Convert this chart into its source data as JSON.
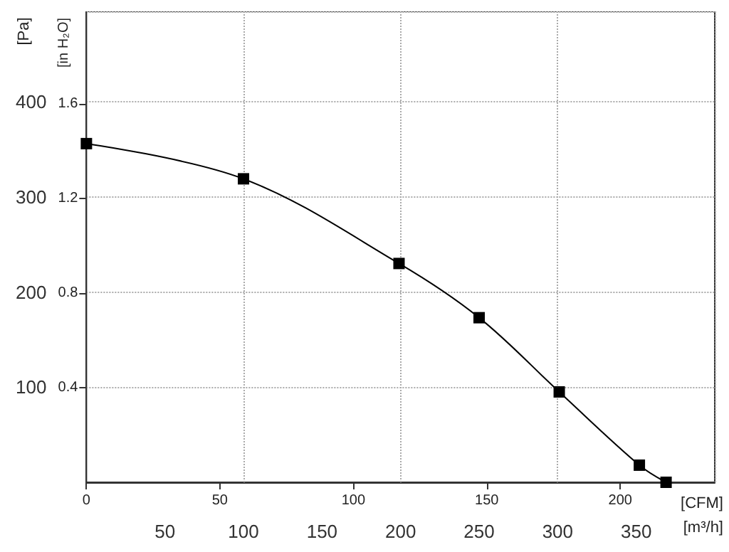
{
  "chart_data": {
    "type": "line",
    "xlabel": "[m³/h]",
    "x2label": "[CFM]",
    "ylabel": "[Pa]",
    "y2label": "[in H₂O]",
    "x": [
      0,
      100,
      199,
      250,
      301,
      352,
      369
    ],
    "series": [
      {
        "color": "#000000",
        "values": [
          356,
          319,
          230,
          173,
          95,
          18,
          0
        ]
      }
    ],
    "xlim": [
      0,
      400
    ],
    "xticks": [
      50,
      100,
      150,
      200,
      250,
      300,
      350
    ],
    "x2lim": [
      0,
      235.4
    ],
    "x2ticks": [
      0,
      50,
      100,
      150,
      200
    ],
    "ylim": [
      0,
      495
    ],
    "yticks": [
      100,
      200,
      300,
      400
    ],
    "y2lim": [
      0,
      1.99
    ],
    "y2ticks": [
      0.4,
      0.8,
      1.2,
      1.6
    ],
    "grid": true,
    "marker": "square",
    "line_style": "solid"
  }
}
